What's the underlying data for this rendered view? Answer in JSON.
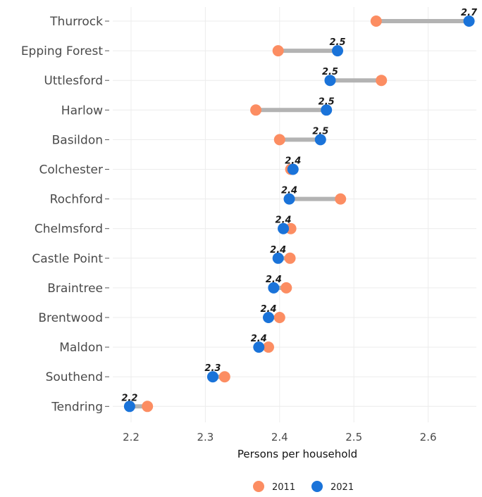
{
  "chart_data": {
    "type": "dumbbell",
    "xlabel": "Persons per household",
    "xlim": [
      2.16,
      2.68
    ],
    "xticks": [
      "2.2",
      "2.3",
      "2.4",
      "2.5",
      "2.6"
    ],
    "grid": true,
    "legend_position": "bottom",
    "series": [
      {
        "name": "2011",
        "color": "#fc8d62"
      },
      {
        "name": "2021",
        "color": "#1a73d9"
      }
    ],
    "rows": [
      {
        "category": "Thurrock",
        "y2011": 2.53,
        "y2021": 2.655,
        "label": "2.7"
      },
      {
        "category": "Epping Forest",
        "y2011": 2.398,
        "y2021": 2.478,
        "label": "2.5"
      },
      {
        "category": "Uttlesford",
        "y2011": 2.537,
        "y2021": 2.468,
        "label": "2.5"
      },
      {
        "category": "Harlow",
        "y2011": 2.368,
        "y2021": 2.463,
        "label": "2.5"
      },
      {
        "category": "Basildon",
        "y2011": 2.4,
        "y2021": 2.455,
        "label": "2.5"
      },
      {
        "category": "Colchester",
        "y2011": 2.415,
        "y2021": 2.418,
        "label": "2.4"
      },
      {
        "category": "Rochford",
        "y2011": 2.482,
        "y2021": 2.413,
        "label": "2.4"
      },
      {
        "category": "Chelmsford",
        "y2011": 2.415,
        "y2021": 2.405,
        "label": "2.4"
      },
      {
        "category": "Castle Point",
        "y2011": 2.414,
        "y2021": 2.398,
        "label": "2.4"
      },
      {
        "category": "Braintree",
        "y2011": 2.409,
        "y2021": 2.392,
        "label": "2.4"
      },
      {
        "category": "Brentwood",
        "y2011": 2.4,
        "y2021": 2.385,
        "label": "2.4"
      },
      {
        "category": "Maldon",
        "y2011": 2.385,
        "y2021": 2.372,
        "label": "2.4"
      },
      {
        "category": "Southend",
        "y2011": 2.326,
        "y2021": 2.31,
        "label": "2.3"
      },
      {
        "category": "Tendring",
        "y2011": 2.222,
        "y2021": 2.198,
        "label": "2.2"
      }
    ]
  }
}
